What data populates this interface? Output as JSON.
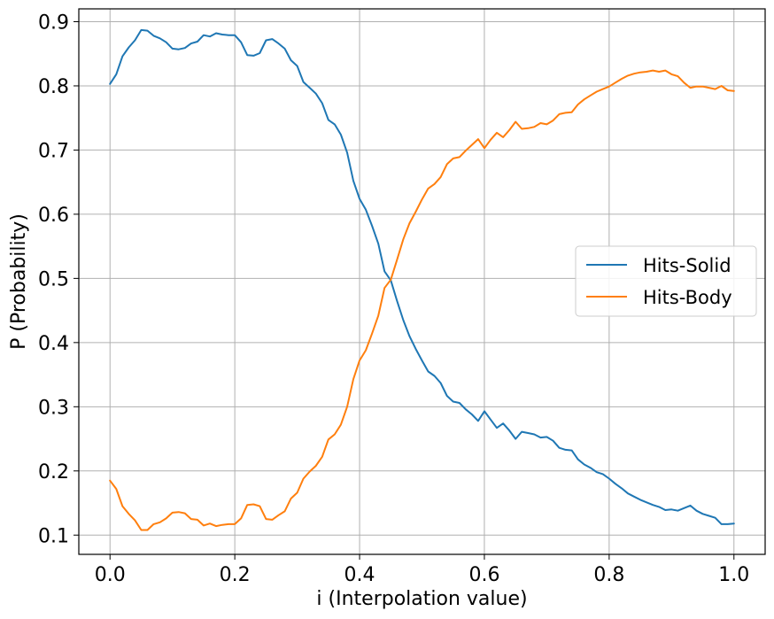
{
  "chart_data": {
    "type": "line",
    "xlabel": "i (Interpolation value)",
    "ylabel": "P (Probability)",
    "xlim": [
      -0.05,
      1.05
    ],
    "ylim": [
      0.07,
      0.92
    ],
    "xticks": [
      0.0,
      0.2,
      0.4,
      0.6,
      0.8,
      1.0
    ],
    "xtick_labels": [
      "0.0",
      "0.2",
      "0.4",
      "0.6",
      "0.8",
      "1.0"
    ],
    "yticks": [
      0.1,
      0.2,
      0.3,
      0.4,
      0.5,
      0.6,
      0.7,
      0.8,
      0.9
    ],
    "ytick_labels": [
      "0.1",
      "0.2",
      "0.3",
      "0.4",
      "0.5",
      "0.6",
      "0.7",
      "0.8",
      "0.9"
    ],
    "grid": true,
    "legend_position": "center-right",
    "x": [
      0.0,
      0.01,
      0.02,
      0.03,
      0.04,
      0.05,
      0.06,
      0.07,
      0.08,
      0.09,
      0.1,
      0.11,
      0.12,
      0.13,
      0.14,
      0.15,
      0.16,
      0.17,
      0.18,
      0.19,
      0.2,
      0.21,
      0.22,
      0.23,
      0.24,
      0.25,
      0.26,
      0.27,
      0.28,
      0.29,
      0.3,
      0.31,
      0.32,
      0.33,
      0.34,
      0.35,
      0.36,
      0.37,
      0.38,
      0.39,
      0.4,
      0.41,
      0.42,
      0.43,
      0.44,
      0.45,
      0.46,
      0.47,
      0.48,
      0.49,
      0.5,
      0.51,
      0.52,
      0.53,
      0.54,
      0.55,
      0.56,
      0.57,
      0.58,
      0.59,
      0.6,
      0.61,
      0.62,
      0.63,
      0.64,
      0.65,
      0.66,
      0.67,
      0.68,
      0.69,
      0.7,
      0.71,
      0.72,
      0.73,
      0.74,
      0.75,
      0.76,
      0.77,
      0.78,
      0.79,
      0.8,
      0.81,
      0.82,
      0.83,
      0.84,
      0.85,
      0.86,
      0.87,
      0.88,
      0.89,
      0.9,
      0.91,
      0.92,
      0.93,
      0.94,
      0.95,
      0.96,
      0.97,
      0.98,
      0.99,
      1.0
    ],
    "series": [
      {
        "name": "Hits-Solid",
        "color": "#1f77b4",
        "values": [
          0.803,
          0.818,
          0.846,
          0.86,
          0.871,
          0.887,
          0.886,
          0.878,
          0.874,
          0.868,
          0.858,
          0.857,
          0.859,
          0.866,
          0.869,
          0.879,
          0.877,
          0.882,
          0.88,
          0.879,
          0.879,
          0.868,
          0.848,
          0.847,
          0.851,
          0.871,
          0.873,
          0.866,
          0.858,
          0.84,
          0.831,
          0.806,
          0.797,
          0.788,
          0.773,
          0.747,
          0.74,
          0.724,
          0.696,
          0.652,
          0.624,
          0.607,
          0.582,
          0.554,
          0.511,
          0.497,
          0.465,
          0.435,
          0.41,
          0.39,
          0.372,
          0.355,
          0.348,
          0.337,
          0.317,
          0.308,
          0.306,
          0.296,
          0.288,
          0.278,
          0.293,
          0.28,
          0.267,
          0.274,
          0.263,
          0.25,
          0.261,
          0.259,
          0.257,
          0.252,
          0.253,
          0.247,
          0.236,
          0.233,
          0.232,
          0.218,
          0.21,
          0.205,
          0.198,
          0.195,
          0.188,
          0.18,
          0.173,
          0.165,
          0.16,
          0.155,
          0.151,
          0.147,
          0.144,
          0.139,
          0.14,
          0.138,
          0.142,
          0.146,
          0.138,
          0.133,
          0.13,
          0.127,
          0.117,
          0.117,
          0.118
        ]
      },
      {
        "name": "Hits-Body",
        "color": "#ff7f0e",
        "values": [
          0.185,
          0.172,
          0.145,
          0.133,
          0.123,
          0.108,
          0.108,
          0.117,
          0.12,
          0.126,
          0.135,
          0.136,
          0.134,
          0.125,
          0.124,
          0.115,
          0.118,
          0.114,
          0.116,
          0.117,
          0.117,
          0.126,
          0.147,
          0.148,
          0.145,
          0.125,
          0.124,
          0.131,
          0.137,
          0.157,
          0.166,
          0.188,
          0.199,
          0.208,
          0.222,
          0.249,
          0.257,
          0.272,
          0.3,
          0.343,
          0.372,
          0.388,
          0.414,
          0.442,
          0.485,
          0.498,
          0.529,
          0.561,
          0.586,
          0.604,
          0.623,
          0.64,
          0.647,
          0.658,
          0.678,
          0.687,
          0.689,
          0.699,
          0.708,
          0.717,
          0.703,
          0.716,
          0.727,
          0.72,
          0.731,
          0.744,
          0.733,
          0.734,
          0.736,
          0.742,
          0.74,
          0.746,
          0.756,
          0.758,
          0.759,
          0.771,
          0.779,
          0.785,
          0.791,
          0.795,
          0.799,
          0.805,
          0.811,
          0.816,
          0.819,
          0.821,
          0.822,
          0.824,
          0.822,
          0.824,
          0.818,
          0.815,
          0.805,
          0.797,
          0.799,
          0.799,
          0.797,
          0.795,
          0.8,
          0.793,
          0.792
        ]
      }
    ]
  }
}
